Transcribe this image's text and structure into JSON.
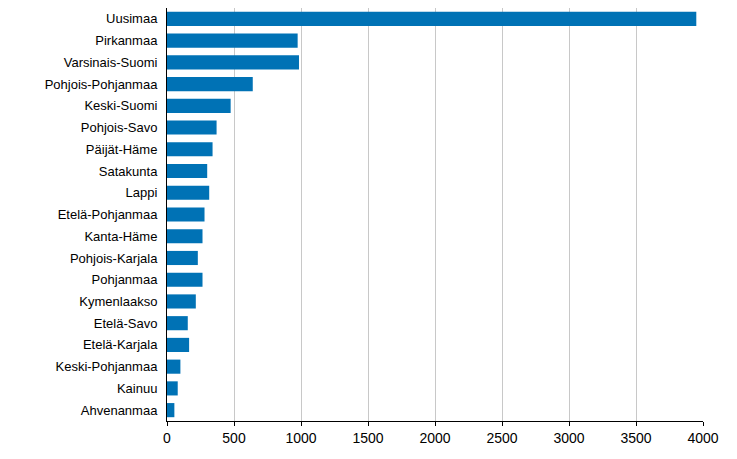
{
  "chart_data": {
    "type": "bar",
    "orientation": "horizontal",
    "categories": [
      "Uusimaa",
      "Pirkanmaa",
      "Varsinais-Suomi",
      "Pohjois-Pohjanmaa",
      "Keski-Suomi",
      "Pohjois-Savo",
      "Päijät-Häme",
      "Satakunta",
      "Lappi",
      "Etelä-Pohjanmaa",
      "Kanta-Häme",
      "Pohjois-Karjala",
      "Pohjanmaa",
      "Kymenlaakso",
      "Etelä-Savo",
      "Etelä-Karjala",
      "Keski-Pohjanmaa",
      "Kainuu",
      "Ahvenanmaa"
    ],
    "values": [
      3950,
      975,
      985,
      640,
      475,
      370,
      340,
      300,
      315,
      280,
      265,
      230,
      265,
      215,
      155,
      165,
      100,
      80,
      55
    ],
    "color": "#0072b5",
    "xlim": [
      0,
      4000
    ],
    "xticks": [
      0,
      500,
      1000,
      1500,
      2000,
      2500,
      3000,
      3500,
      4000
    ],
    "grid": true
  }
}
